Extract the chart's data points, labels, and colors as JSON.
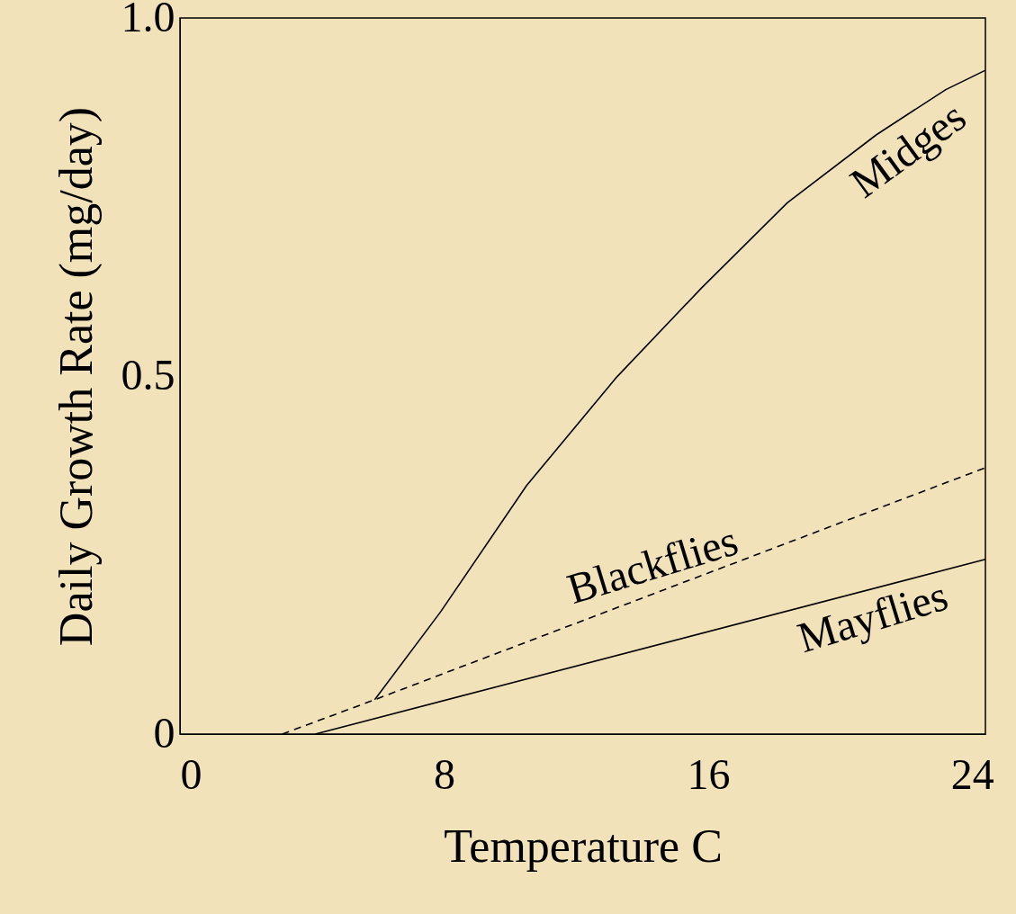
{
  "chart_data": {
    "type": "line",
    "xlabel": "Temperature C",
    "ylabel": "Daily Growth Rate (mg/day)",
    "xlim": [
      0,
      24.4
    ],
    "ylim": [
      0,
      1
    ],
    "xticks": [
      0,
      8,
      16,
      24
    ],
    "yticks": [
      0,
      0.5,
      {
        "value": 1,
        "label": "1.0"
      }
    ],
    "series": [
      {
        "name": "Midges",
        "color": "#000000",
        "line_style": "solid",
        "x": [
          5.9,
          7.9,
          10.5,
          13.2,
          15.8,
          18.4,
          21.1,
          23.2,
          24.4
        ],
        "values": [
          0.048,
          0.171,
          0.347,
          0.497,
          0.623,
          0.742,
          0.837,
          0.9,
          0.927
        ]
      },
      {
        "name": "Blackflies",
        "color": "#000000",
        "line_style": "dashed",
        "x": [
          3.1,
          5.9,
          24.4
        ],
        "values": [
          0,
          0.048,
          0.372
        ]
      },
      {
        "name": "Mayflies",
        "color": "#000000",
        "line_style": "solid",
        "x": [
          4.1,
          24.4
        ],
        "values": [
          0,
          0.244
        ]
      }
    ]
  }
}
